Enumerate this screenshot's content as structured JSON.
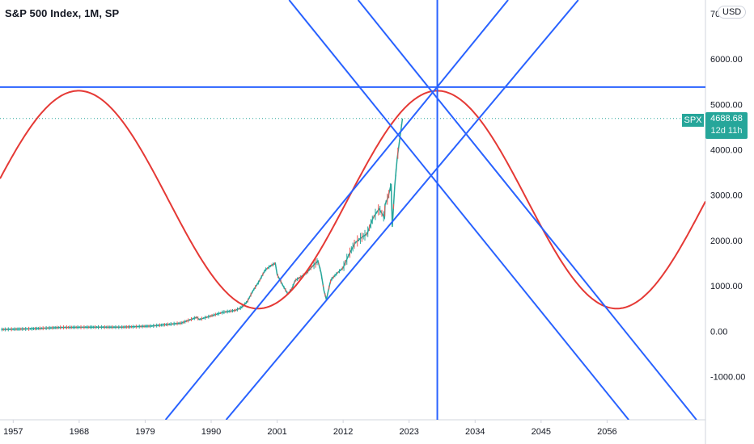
{
  "header": {
    "title": "S&P 500 Index, 1M, SP",
    "currency": "USD"
  },
  "price_label": {
    "symbol": "SPX",
    "value": "4688.68",
    "time_remaining": "12d 11h"
  },
  "colors": {
    "price": "#26a69a",
    "sine": "#e53935",
    "gann": "#2962ff",
    "up": "#26a69a",
    "down": "#ef5350",
    "axis": "#131722"
  },
  "chart_data": {
    "type": "line",
    "title": "S&P 500 Index, 1M, SP",
    "xlabel": "",
    "ylabel": "",
    "x_ticks": [
      1957,
      1968,
      1979,
      1990,
      2001,
      2012,
      2023,
      2034,
      2045,
      2056
    ],
    "y_ticks": [
      -1000,
      0,
      1000,
      2000,
      3000,
      4000,
      5000,
      6000,
      7000
    ],
    "y_tick_labels": [
      "-1000.00",
      "0.00",
      "1000.00",
      "2000.00",
      "3000.00",
      "4000.00",
      "5000.00",
      "6000.00",
      "7000.00"
    ],
    "xlim": [
      1954.8,
      2072.4
    ],
    "ylim": [
      -1950,
      7300
    ],
    "last_price": 4688.68,
    "series": [
      {
        "kind": "price",
        "x": [
          1955,
          1960,
          1965,
          1970,
          1975,
          1980,
          1985,
          1987.6,
          1988,
          1990,
          1992,
          1994,
          1995,
          1996,
          1997,
          1998,
          1999,
          2000,
          2000.7,
          2001,
          2002,
          2002.8,
          2003.5,
          2004,
          2005,
          2006,
          2007,
          2007.8,
          2008.3,
          2008.8,
          2009.2,
          2009.8,
          2010,
          2011,
          2012,
          2013,
          2014,
          2015,
          2016,
          2017,
          2018,
          2018.9,
          2019,
          2019.5,
          2020,
          2020.2,
          2020.6,
          2021,
          2021.5,
          2021.9
        ],
        "y": [
          40,
          55,
          85,
          90,
          90,
          115,
          180,
          310,
          260,
          340,
          420,
          460,
          520,
          650,
          900,
          1100,
          1350,
          1450,
          1500,
          1250,
          1000,
          820,
          950,
          1120,
          1200,
          1300,
          1450,
          1550,
          1300,
          900,
          700,
          1050,
          1140,
          1280,
          1400,
          1700,
          1950,
          2060,
          2150,
          2500,
          2700,
          2500,
          2800,
          2950,
          3250,
          2300,
          3200,
          3800,
          4300,
          4688.68
        ]
      },
      {
        "kind": "cycle",
        "amplitude": 2400,
        "center": 2900,
        "peak_year": 2027.7,
        "period_years": 59.8
      }
    ],
    "horizontal_lines": [
      5380
    ],
    "vertical_lines": [
      2027.7
    ],
    "diagonal_lines": [
      {
        "x1": 1982.4,
        "y1": -1950,
        "x2": 2039.5,
        "y2": 7300
      },
      {
        "x1": 1992.5,
        "y1": -1950,
        "x2": 2051.2,
        "y2": 7300
      },
      {
        "x1": 2014.5,
        "y1": 7300,
        "x2": 2070.9,
        "y2": -1950
      },
      {
        "x1": 2003.0,
        "y1": 7300,
        "x2": 2059.6,
        "y2": -1950
      }
    ]
  }
}
